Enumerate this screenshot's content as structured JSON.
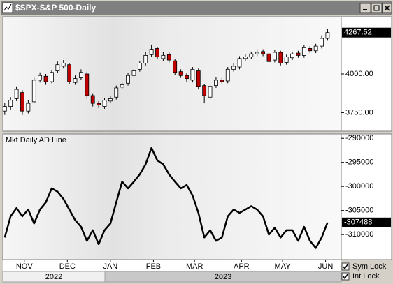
{
  "window": {
    "title": "$SPX-S&P 500-Daily"
  },
  "chart_data": [
    {
      "type": "candlestick",
      "x": [
        0,
        3,
        6,
        9,
        12,
        15,
        18,
        21,
        24,
        27,
        30,
        33,
        36,
        39,
        42,
        45,
        48,
        51,
        54,
        57,
        60,
        63,
        66,
        69,
        72,
        75,
        78,
        81,
        84,
        87,
        90,
        93,
        96,
        99,
        102,
        105,
        108,
        111,
        114,
        117,
        120,
        123,
        126,
        129,
        132,
        135,
        138,
        141,
        144,
        147,
        150,
        153,
        156,
        159,
        162,
        165
      ],
      "open": [
        3760,
        3790,
        3840,
        3880,
        3760,
        3820,
        3960,
        3985,
        3950,
        4020,
        4050,
        4060,
        3945,
        3975,
        4000,
        3860,
        3810,
        3790,
        3825,
        3850,
        3915,
        3940,
        3990,
        4030,
        4070,
        4125,
        4165,
        4100,
        4125,
        4085,
        4015,
        3990,
        3960,
        4020,
        3925,
        3850,
        3925,
        3960,
        3955,
        4030,
        4045,
        4100,
        4110,
        4130,
        4145,
        4130,
        4090,
        4140,
        4075,
        4105,
        4135,
        4120,
        4165,
        4150,
        4180,
        4230
      ],
      "high": [
        3815,
        3850,
        3920,
        3895,
        3830,
        3975,
        4010,
        4000,
        4025,
        4080,
        4090,
        4070,
        3990,
        4030,
        4015,
        3875,
        3825,
        3845,
        3860,
        3925,
        3950,
        4005,
        4040,
        4085,
        4140,
        4190,
        4175,
        4140,
        4140,
        4095,
        4030,
        4005,
        4045,
        4035,
        3935,
        3935,
        3980,
        3975,
        4045,
        4070,
        4115,
        4130,
        4145,
        4160,
        4160,
        4140,
        4155,
        4150,
        4125,
        4145,
        4150,
        4185,
        4180,
        4195,
        4250,
        4290
      ],
      "low": [
        3735,
        3770,
        3825,
        3735,
        3745,
        3810,
        3945,
        3930,
        3940,
        4005,
        4035,
        3935,
        3930,
        3960,
        3840,
        3790,
        3780,
        3775,
        3810,
        3835,
        3900,
        3925,
        3975,
        4015,
        4055,
        4110,
        4095,
        4085,
        4075,
        3995,
        3975,
        3950,
        3945,
        3900,
        3810,
        3835,
        3910,
        3935,
        3940,
        4015,
        4030,
        4085,
        4095,
        4115,
        4115,
        4060,
        4075,
        4055,
        4060,
        4090,
        4105,
        4105,
        4135,
        4135,
        4165,
        4215
      ],
      "close": [
        3790,
        3830,
        3900,
        3760,
        3810,
        3960,
        3990,
        3950,
        4010,
        4060,
        4070,
        3950,
        3970,
        4010,
        3860,
        3810,
        3800,
        3830,
        3840,
        3910,
        3930,
        3990,
        4020,
        4070,
        4120,
        4160,
        4110,
        4120,
        4090,
        4010,
        3990,
        3970,
        4030,
        3920,
        3860,
        3920,
        3960,
        3950,
        4030,
        4050,
        4100,
        4110,
        4130,
        4140,
        4130,
        4080,
        4140,
        4070,
        4110,
        4130,
        4120,
        4170,
        4150,
        4180,
        4230,
        4267.52
      ],
      "up_color": "#ffffff",
      "down_color": "#c00000",
      "xlim": [
        -1,
        172
      ],
      "ylim": [
        3630,
        4370
      ],
      "yticks": [
        {
          "value": 3750,
          "label": "3750.00"
        },
        {
          "value": 4000,
          "label": "4000.00"
        }
      ]
    },
    {
      "type": "line",
      "title": "Mkt Daily AD Line",
      "x": [
        0,
        3,
        6,
        9,
        12,
        15,
        18,
        21,
        24,
        27,
        30,
        33,
        36,
        39,
        42,
        45,
        48,
        51,
        54,
        57,
        60,
        63,
        66,
        69,
        72,
        75,
        78,
        81,
        84,
        87,
        90,
        93,
        96,
        99,
        102,
        105,
        108,
        111,
        114,
        117,
        120,
        123,
        126,
        129,
        132,
        135,
        138,
        141,
        144,
        147,
        150,
        153,
        156,
        159,
        162,
        165
      ],
      "values": [
        -310600,
        -306200,
        -304500,
        -306200,
        -304800,
        -307700,
        -304800,
        -303300,
        -300400,
        -301100,
        -302600,
        -304800,
        -307000,
        -308400,
        -311300,
        -309100,
        -312000,
        -309100,
        -307700,
        -303300,
        -299000,
        -300400,
        -299000,
        -297500,
        -295400,
        -292000,
        -294600,
        -295400,
        -297500,
        -299000,
        -300400,
        -299700,
        -301900,
        -305500,
        -310600,
        -309100,
        -311300,
        -310600,
        -306200,
        -304800,
        -305500,
        -304800,
        -304100,
        -304800,
        -306200,
        -310000,
        -308600,
        -310600,
        -309100,
        -309100,
        -311300,
        -308400,
        -311300,
        -312800,
        -310600,
        -307488
      ],
      "color": "#000000",
      "xlim": [
        -1,
        172
      ],
      "ylim": [
        -315200,
        -289100
      ],
      "yticks": [
        -290000,
        -295000,
        -300000,
        -305000,
        -310000
      ]
    }
  ],
  "x_axis": {
    "xticks": [
      {
        "value": 10,
        "label": "NOV"
      },
      {
        "value": 32,
        "label": "DEC"
      },
      {
        "value": 54,
        "label": "JAN"
      },
      {
        "value": 76,
        "label": "FEB"
      },
      {
        "value": 97,
        "label": "MAR"
      },
      {
        "value": 121,
        "label": "APR"
      },
      {
        "value": 142,
        "label": "MAY"
      },
      {
        "value": 164,
        "label": "JUN"
      }
    ],
    "years": [
      "2022",
      "2023"
    ]
  },
  "controls": [
    "Sym Lock",
    "Int Lock"
  ]
}
